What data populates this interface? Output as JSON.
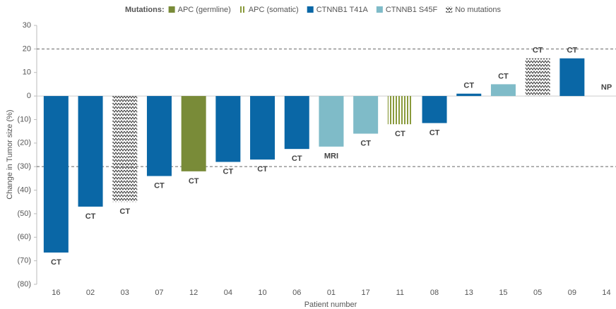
{
  "chart_data": {
    "type": "bar",
    "legend_title": "Mutations:",
    "x_label": "Patient number",
    "y_label": "Change in Tumor size (%)",
    "categories": [
      "16",
      "02",
      "03",
      "07",
      "12",
      "04",
      "10",
      "06",
      "01",
      "17",
      "11",
      "08",
      "13",
      "15",
      "05",
      "09",
      "14"
    ],
    "series": [
      {
        "name": "APC (germline)",
        "color": "#798b38",
        "values": [
          null,
          null,
          null,
          null,
          -32,
          null,
          null,
          null,
          null,
          null,
          null,
          null,
          null,
          null,
          null,
          null,
          null
        ]
      },
      {
        "name": "APC (somatic)",
        "color": "#8a9a3c",
        "pattern": "vertical-stripes",
        "values": [
          null,
          null,
          null,
          null,
          null,
          null,
          null,
          null,
          null,
          null,
          -12,
          null,
          null,
          null,
          null,
          null,
          null
        ]
      },
      {
        "name": "CTNNB1 T41A",
        "color": "#0a67a6",
        "values": [
          -66.5,
          -47,
          null,
          -34,
          null,
          -28,
          -27,
          -22.5,
          null,
          null,
          null,
          -11.5,
          1,
          null,
          null,
          16,
          null
        ]
      },
      {
        "name": "CTNNB1 S45F",
        "color": "#7fbbc8",
        "values": [
          null,
          null,
          null,
          null,
          null,
          null,
          null,
          null,
          -21.5,
          -16,
          null,
          null,
          null,
          5,
          null,
          null,
          null
        ]
      },
      {
        "name": "No mutations",
        "color": "#333333",
        "pattern": "zigzag",
        "values": [
          null,
          null,
          -45,
          null,
          null,
          null,
          null,
          null,
          null,
          null,
          null,
          null,
          null,
          null,
          16,
          null,
          null
        ]
      }
    ],
    "annotations": [
      "CT",
      "CT",
      "CT",
      "CT",
      "CT",
      "CT",
      "CT",
      "CT",
      "MRI",
      "CT",
      "CT",
      "CT",
      "CT",
      "CT",
      "CT",
      "CT",
      "NP"
    ],
    "ylim": [
      -80,
      30
    ],
    "yticks": [
      30,
      20,
      10,
      0,
      {
        "value": -10,
        "label": "(10)"
      },
      {
        "value": -20,
        "label": "(20)"
      },
      {
        "value": -30,
        "label": "(30)"
      },
      {
        "value": -40,
        "label": "(40)"
      },
      {
        "value": -50,
        "label": "(50)"
      },
      {
        "value": -60,
        "label": "(60)"
      },
      {
        "value": -70,
        "label": "(70)"
      },
      {
        "value": -80,
        "label": "(80)"
      }
    ],
    "reference_lines": [
      20,
      -30
    ]
  }
}
